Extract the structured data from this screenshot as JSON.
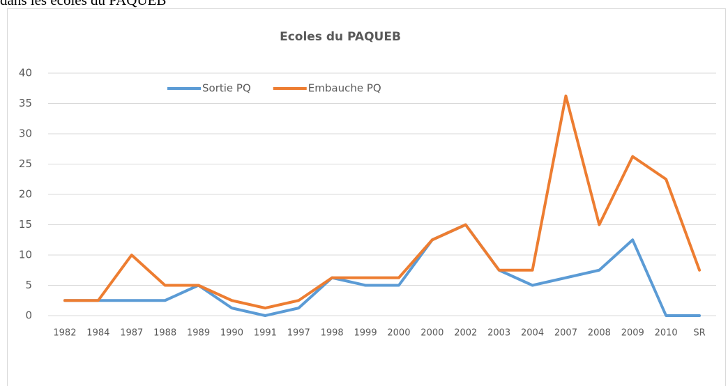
{
  "caption": "dans les écoles du PAQUEB",
  "chart_data": {
    "type": "line",
    "title": "Ecoles du PAQUEB",
    "categories": [
      "1982",
      "1984",
      "1987",
      "1988",
      "1989",
      "1990",
      "1991",
      "1997",
      "1998",
      "1999",
      "2000",
      "2000",
      "2002",
      "2003",
      "2004",
      "2007",
      "2008",
      "2009",
      "2010",
      "SR"
    ],
    "series": [
      {
        "name": "Sortie PQ",
        "color": "#5b9bd5",
        "values": [
          2.5,
          2.5,
          2.5,
          2.5,
          5,
          1.25,
          0,
          1.25,
          6.25,
          5,
          5,
          12.5,
          15,
          7.5,
          5,
          6.25,
          7.5,
          12.5,
          0,
          0
        ]
      },
      {
        "name": "Embauche PQ",
        "color": "#ed7d31",
        "values": [
          2.5,
          2.5,
          10,
          5,
          5,
          2.5,
          1.25,
          2.5,
          6.25,
          6.25,
          6.25,
          12.5,
          15,
          7.5,
          7.5,
          36.25,
          15,
          26.25,
          22.5,
          7.5
        ]
      }
    ],
    "ylim": [
      0,
      40
    ],
    "yticks": [
      0,
      5,
      10,
      15,
      20,
      25,
      30,
      35,
      40
    ],
    "grid": true,
    "legend": "top"
  }
}
